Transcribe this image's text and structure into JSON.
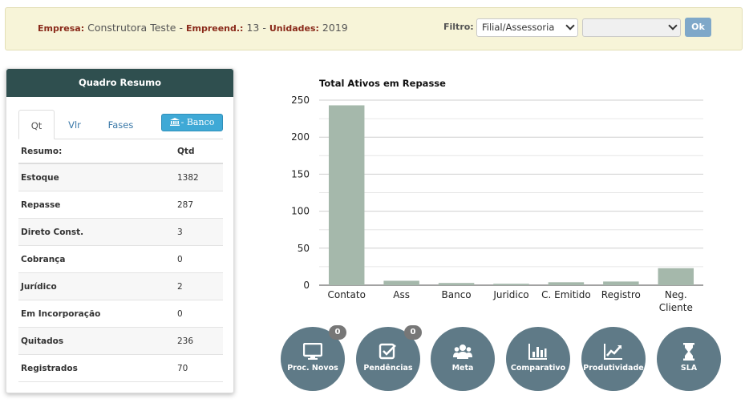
{
  "header": {
    "empresa_label": "Empresa:",
    "empresa_value": "Construtora Teste",
    "sep1": " - ",
    "empreend_label": "Empreend.:",
    "empreend_value": "13",
    "sep2": " - ",
    "unidades_label": "Unidades:",
    "unidades_value": "2019",
    "filtro_label": "Filtro:",
    "filtro_select1": "Filial/Assessoria",
    "filtro_select2": "",
    "ok_label": "Ok"
  },
  "panel": {
    "title": "Quadro Resumo",
    "tabs": [
      "Qt",
      "Vlr",
      "Fases"
    ],
    "active_tab": "Qt",
    "banco_label": "- Banco",
    "table_headers": [
      "Resumo:",
      "Qtd"
    ],
    "rows": [
      {
        "label": "Estoque",
        "value": "1382"
      },
      {
        "label": "Repasse",
        "value": "287"
      },
      {
        "label": "Direto Const.",
        "value": "3"
      },
      {
        "label": "Cobrança",
        "value": "0"
      },
      {
        "label": "Jurídico",
        "value": "2"
      },
      {
        "label": "Em Incorporação",
        "value": "0"
      },
      {
        "label": "Quitados",
        "value": "236"
      },
      {
        "label": "Registrados",
        "value": "70"
      }
    ]
  },
  "chart_data": {
    "type": "bar",
    "title": "Total Ativos em Repasse",
    "categories": [
      "Contato",
      "Ass",
      "Banco",
      "Juridico",
      "C. Emitido",
      "Registro",
      "Neg. Cliente"
    ],
    "values": [
      243,
      6,
      3,
      2,
      4,
      5,
      23
    ],
    "ylim": [
      0,
      250
    ],
    "yticks": [
      0,
      50,
      100,
      150,
      200,
      250
    ],
    "grid": true,
    "bar_color": "#a5b8ab"
  },
  "actions": [
    {
      "label": "Proc. Novos",
      "icon": "monitor-icon",
      "badge": "0"
    },
    {
      "label": "Pendências",
      "icon": "checkbox-icon",
      "badge": "0"
    },
    {
      "label": "Meta",
      "icon": "users-icon"
    },
    {
      "label": "Comparativo",
      "icon": "bar-chart-icon"
    },
    {
      "label": "Produtividade",
      "icon": "line-chart-icon"
    },
    {
      "label": "SLA",
      "icon": "hourglass-icon"
    }
  ],
  "colors": {
    "topbar_bg": "#f7f4d8",
    "panel_header": "#2f4f4f",
    "action_circle": "#5f7a87",
    "ok_button": "#7fa8c9",
    "banco_button": "#3fa9d6"
  }
}
